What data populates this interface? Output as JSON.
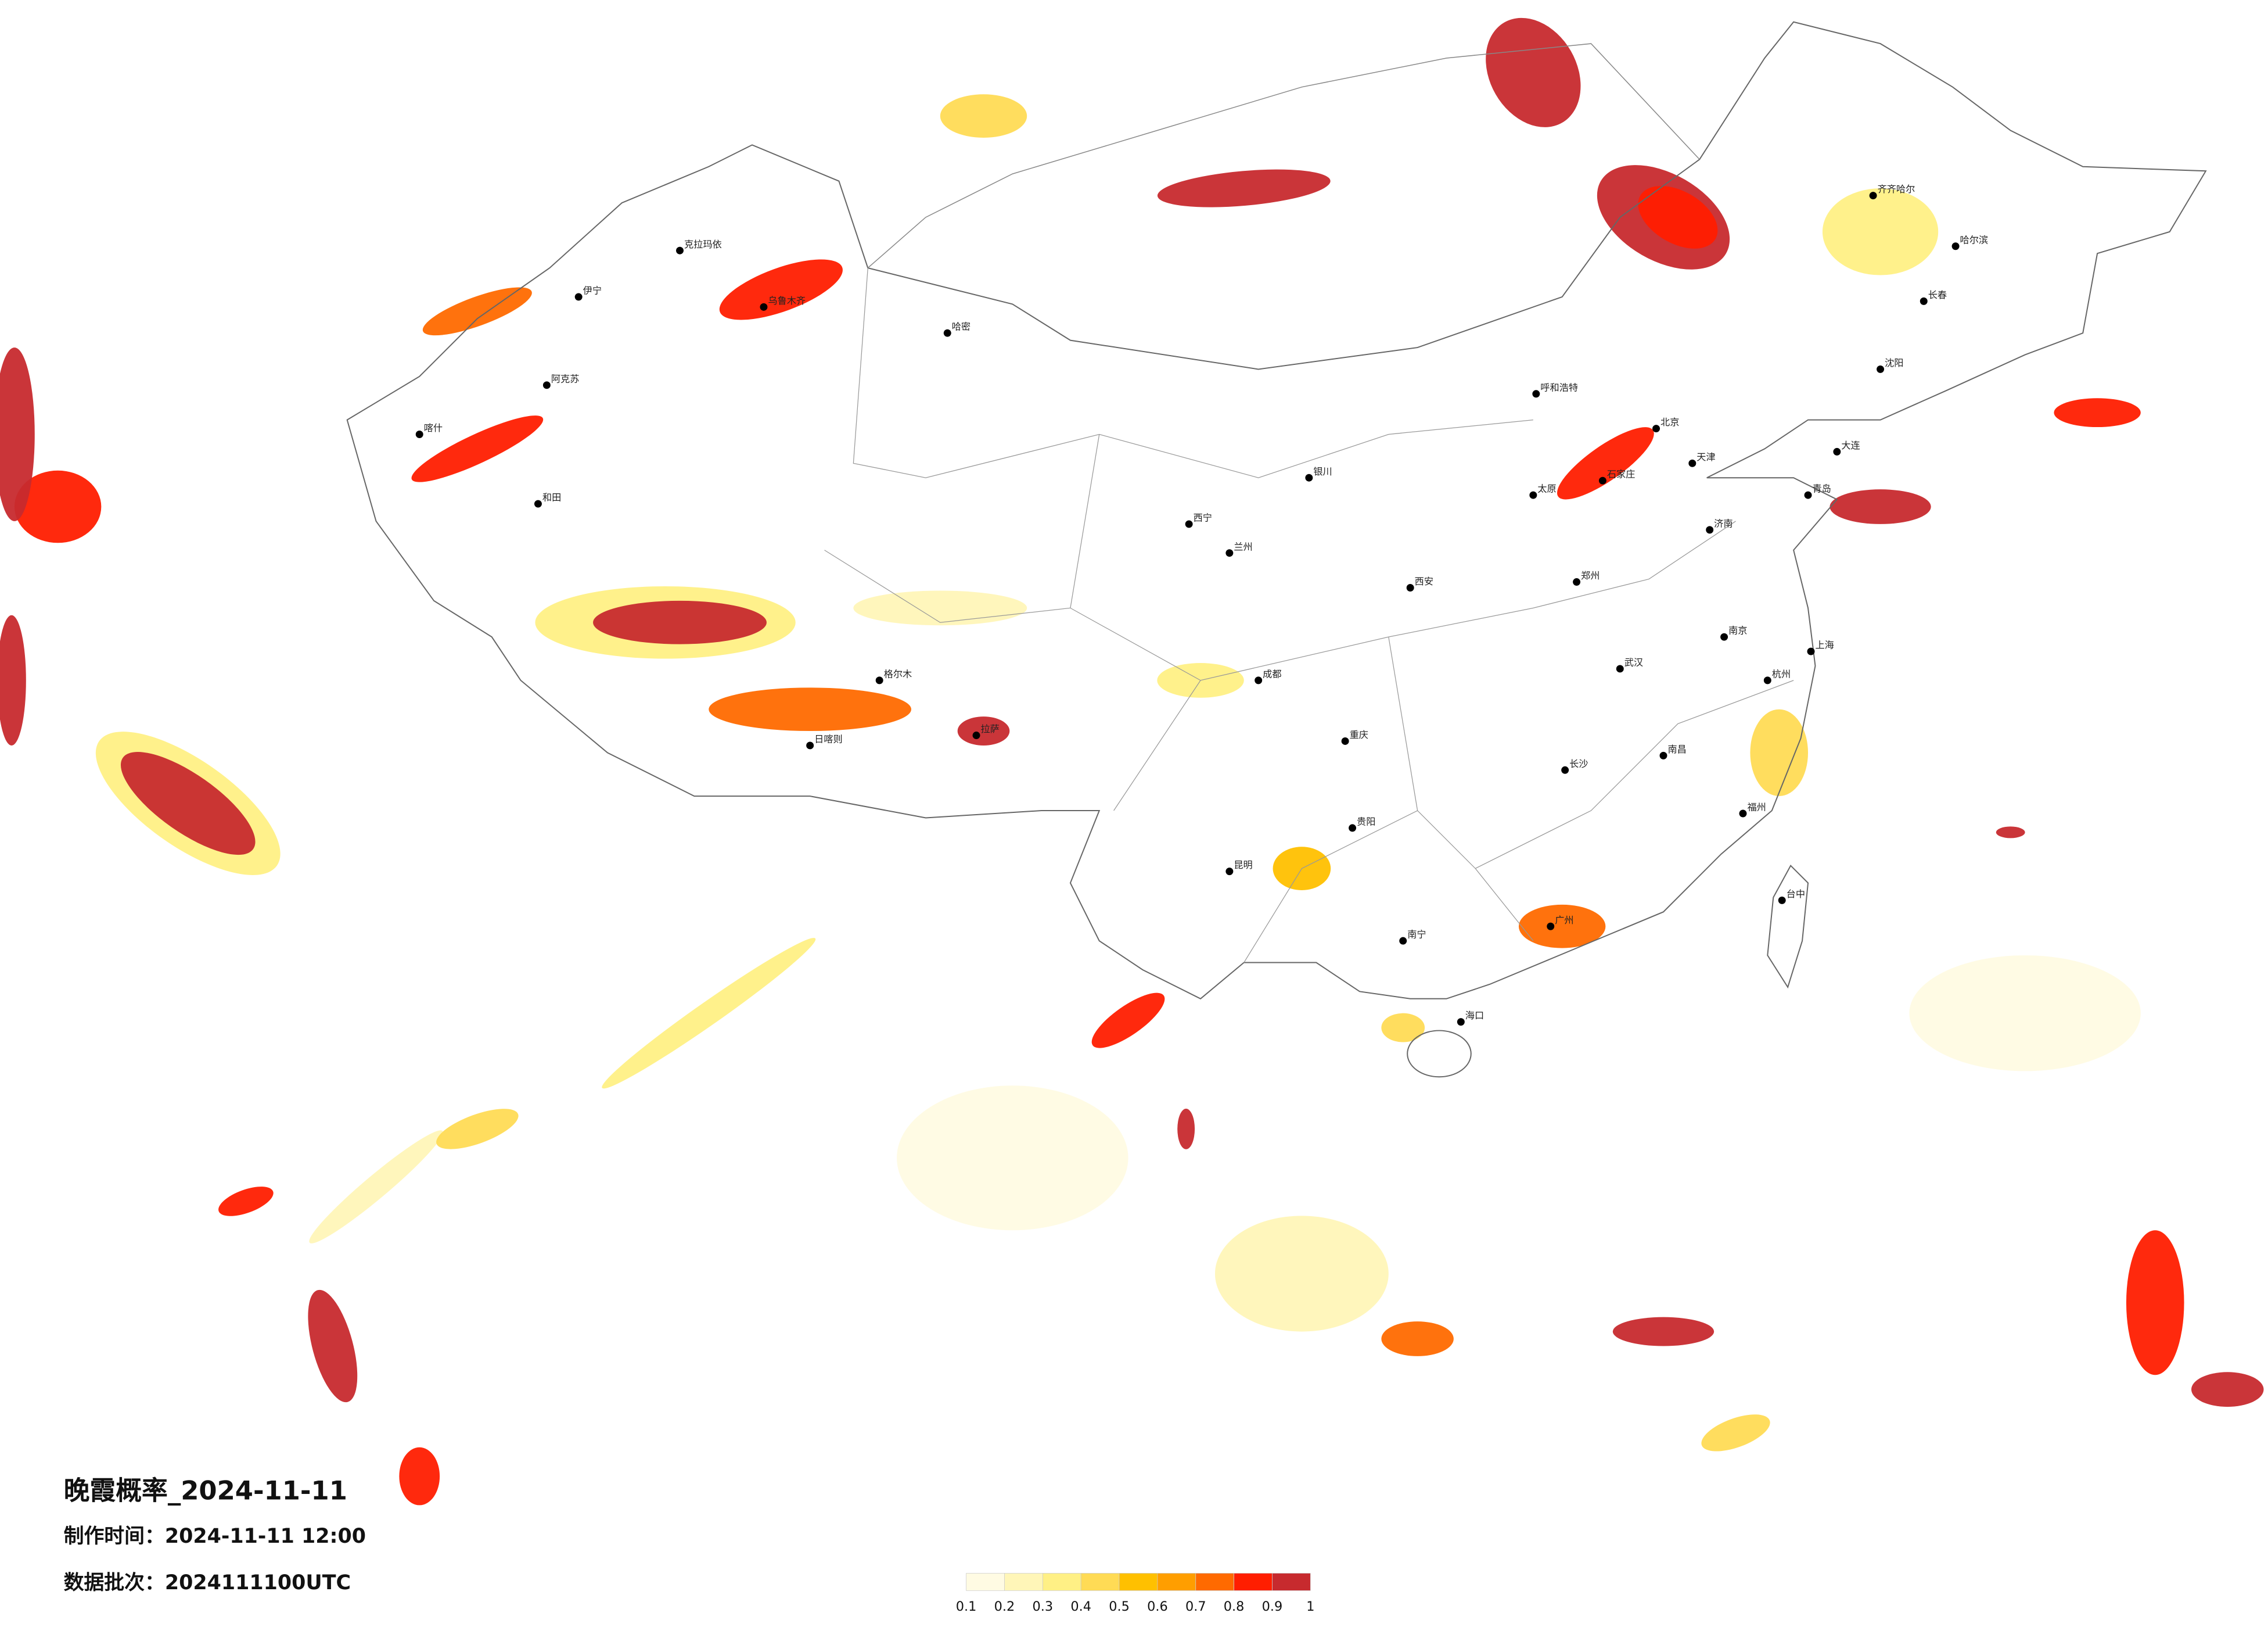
{
  "title": "晚霞概率_2024-11-11",
  "made_time": "制作时间：2024-11-11 12:00",
  "data_batch": "数据批次：2024111100UTC",
  "legend": {
    "ticks": [
      0.1,
      0.2,
      0.3,
      0.4,
      0.5,
      0.6,
      0.7,
      0.8,
      0.9,
      1
    ],
    "colors": [
      "#fffbe3",
      "#fff6b8",
      "#fff085",
      "#ffdb55",
      "#ffc000",
      "#ff9e00",
      "#ff6a00",
      "#ff1e00",
      "#c72a2e"
    ]
  },
  "cities": [
    "克拉玛依",
    "伊宁",
    "阿克苏",
    "喀什",
    "和田",
    "哈密",
    "拉萨",
    "日喀则",
    "西宁",
    "兰州",
    "银川",
    "呼和浩特",
    "哈尔滨",
    "长春",
    "沈阳",
    "大连",
    "北京",
    "天津",
    "石家庄",
    "太原",
    "济南",
    "郑州",
    "西安",
    "武汉",
    "成都",
    "重庆",
    "贵阳",
    "昆明",
    "南宁",
    "广州",
    "海口",
    "福州",
    "杭州",
    "上海",
    "南京",
    "长沙",
    "南昌",
    "台中",
    "青岛",
    "齐齐哈尔",
    "乌鲁木齐",
    "格尔木"
  ]
}
